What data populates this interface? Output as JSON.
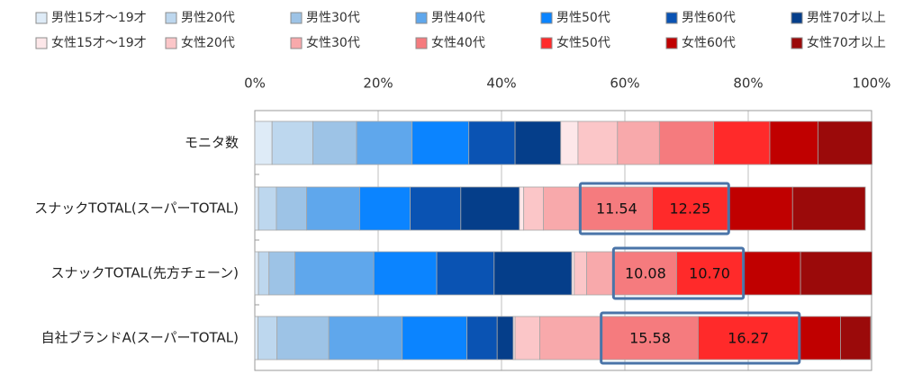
{
  "chart_data": {
    "type": "bar",
    "orientation": "horizontal",
    "stacked": "percent",
    "categories": [
      "モニタ数",
      "スナックTOTAL(スーパーTOTAL)",
      "スナックTOTAL(先方チェーン)",
      "自社ブランドA(スーパーTOTAL)"
    ],
    "x_ticks": [
      "0%",
      "20%",
      "40%",
      "60%",
      "80%",
      "100%"
    ],
    "xlim": [
      0,
      100
    ],
    "grid": true,
    "legend_position": "top",
    "series": [
      {
        "name": "男性15才～19才",
        "color": "#DEEBF7",
        "values": [
          2.8,
          0.6,
          0.6,
          0.5
        ]
      },
      {
        "name": "男性20代",
        "color": "#BDD7EE",
        "values": [
          6.6,
          2.9,
          1.7,
          3.1
        ]
      },
      {
        "name": "男性30代",
        "color": "#9DC3E6",
        "values": [
          7.1,
          4.9,
          4.2,
          8.4
        ]
      },
      {
        "name": "男性40代",
        "color": "#5FA7EC",
        "values": [
          9.0,
          8.6,
          12.8,
          11.9
        ]
      },
      {
        "name": "男性50代",
        "color": "#0B84FF",
        "values": [
          9.2,
          8.2,
          10.2,
          10.5
        ]
      },
      {
        "name": "男性60代",
        "color": "#0A53B3",
        "values": [
          7.5,
          8.2,
          9.3,
          4.9
        ]
      },
      {
        "name": "男性70才以上",
        "color": "#053E8A",
        "values": [
          7.4,
          9.5,
          12.6,
          2.6
        ]
      },
      {
        "name": "女性15才～19才",
        "color": "#FDE7E9",
        "values": [
          2.8,
          0.7,
          0.4,
          0.3
        ]
      },
      {
        "name": "女性20代",
        "color": "#FBC6C8",
        "values": [
          6.4,
          3.2,
          2.0,
          4.0
        ]
      },
      {
        "name": "女性30代",
        "color": "#F8A9AB",
        "values": [
          6.8,
          6.1,
          4.5,
          10.1
        ]
      },
      {
        "name": "女性40代",
        "color": "#F57B7E",
        "values": [
          8.8,
          11.54,
          10.08,
          15.58
        ]
      },
      {
        "name": "女性50代",
        "color": "#FF2A2A",
        "values": [
          9.1,
          12.25,
          10.7,
          16.27
        ]
      },
      {
        "name": "女性60代",
        "color": "#C00000",
        "values": [
          7.8,
          10.5,
          9.4,
          6.8
        ]
      },
      {
        "name": "女性70才以上",
        "color": "#9B0A0A",
        "values": [
          8.8,
          11.8,
          11.6,
          4.9
        ]
      }
    ],
    "highlighted_labels": [
      {
        "category_index": 1,
        "series_index": 10,
        "label": "11.54"
      },
      {
        "category_index": 1,
        "series_index": 11,
        "label": "12.25"
      },
      {
        "category_index": 2,
        "series_index": 10,
        "label": "10.08"
      },
      {
        "category_index": 2,
        "series_index": 11,
        "label": "10.70"
      },
      {
        "category_index": 3,
        "series_index": 10,
        "label": "15.58"
      },
      {
        "category_index": 3,
        "series_index": 11,
        "label": "16.27"
      }
    ],
    "highlight_box_color": "#4A74A8"
  }
}
